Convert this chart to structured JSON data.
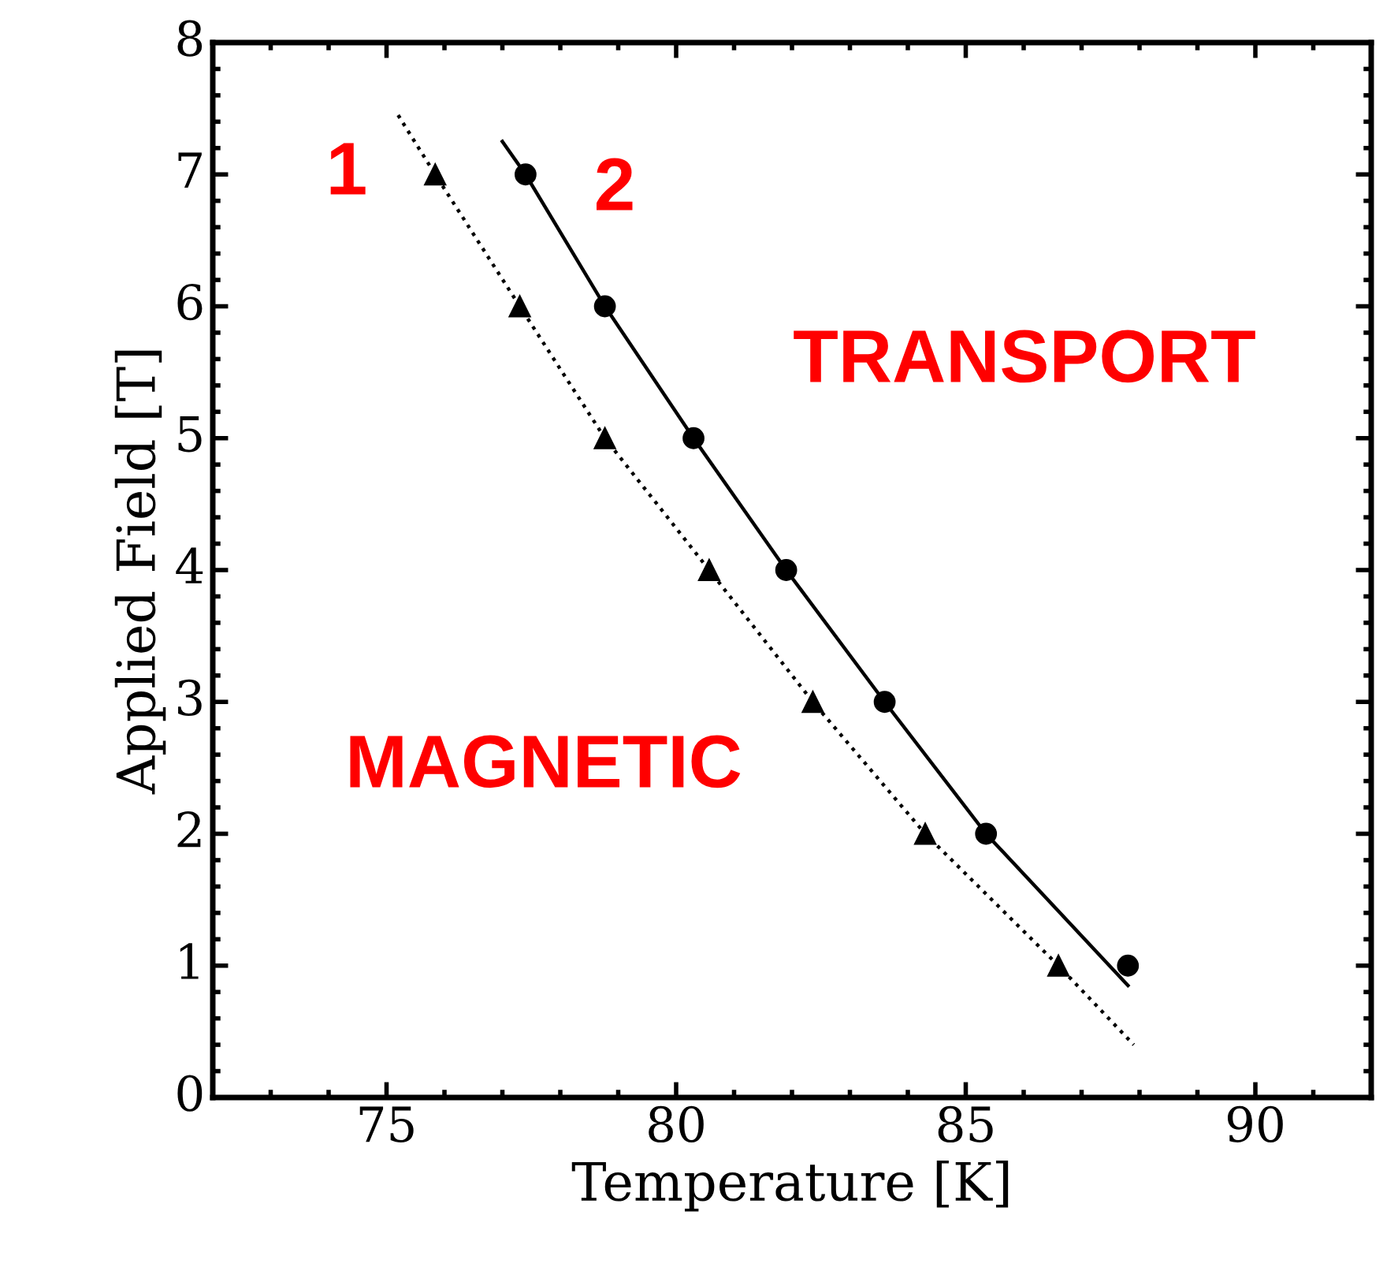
{
  "chart_data": {
    "type": "scatter",
    "xlabel": "Temperature [K]",
    "ylabel": "Applied Field [T]",
    "xlim": [
      72,
      92
    ],
    "xticks": [
      75,
      80,
      85,
      90
    ],
    "ylim": [
      0,
      8
    ],
    "yticks": [
      0,
      1,
      2,
      3,
      4,
      5,
      6,
      7,
      8
    ],
    "grid": false,
    "series": [
      {
        "marker": "triangle",
        "color": "#000000",
        "x": [
          75.84,
          77.3,
          78.77,
          80.57,
          82.36,
          84.3,
          86.6
        ],
        "values": [
          7,
          6,
          5,
          4,
          3,
          2,
          1
        ]
      },
      {
        "marker": "circle",
        "color": "#000000",
        "x": [
          77.4,
          78.77,
          80.3,
          81.9,
          83.6,
          85.35,
          87.8
        ],
        "values": [
          7,
          6,
          5,
          4,
          3,
          2,
          1
        ]
      },
      {
        "type": "line",
        "line_style": "dotted",
        "color": "#000000",
        "x": [
          75.2,
          75.84,
          77.3,
          78.77,
          80.57,
          82.36,
          84.3,
          86.6,
          87.9
        ],
        "values": [
          7.45,
          7,
          6,
          5,
          4,
          3,
          2,
          1,
          0.4
        ]
      },
      {
        "type": "line",
        "line_style": "solid",
        "color": "#000000",
        "x": [
          77.0,
          77.4,
          78.77,
          80.3,
          81.9,
          83.6,
          85.35,
          87.8
        ],
        "values": [
          7.25,
          7,
          6,
          5,
          4,
          3,
          2,
          0.85
        ]
      }
    ],
    "annotations": [
      "1",
      "2",
      "TRANSPORT",
      "MAGNETIC"
    ]
  }
}
